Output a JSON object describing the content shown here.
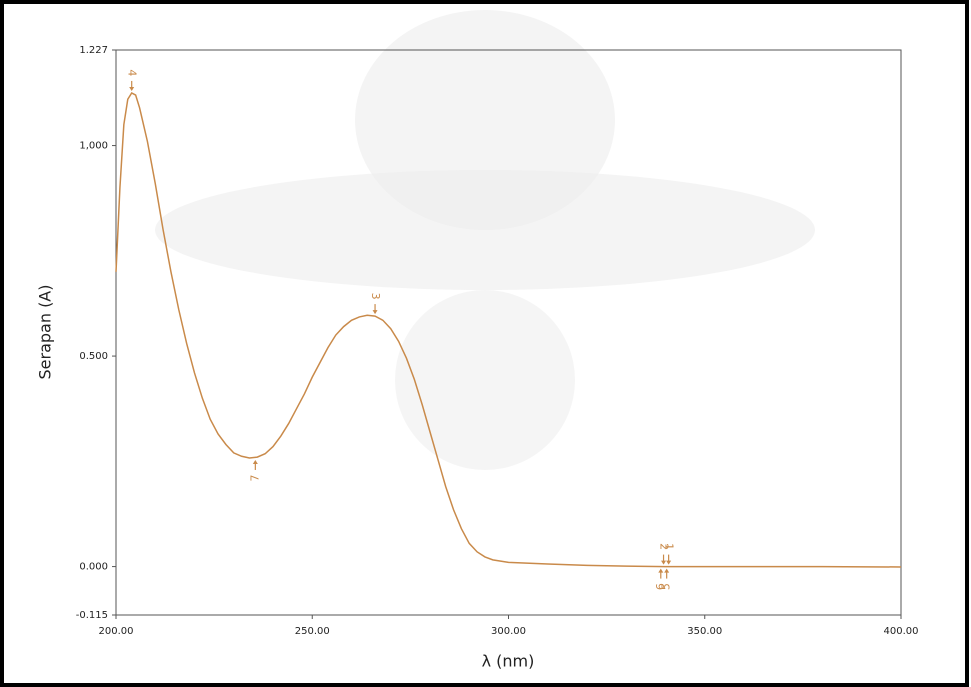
{
  "chart_data": {
    "type": "line",
    "ylabel": "Serapan (A)",
    "xlabel": "λ (nm)",
    "xlim": [
      200,
      400
    ],
    "xticks": [
      {
        "value": 200,
        "label": "200.00"
      },
      {
        "value": 250,
        "label": "250.00"
      },
      {
        "value": 300,
        "label": "300.00"
      },
      {
        "value": 350,
        "label": "350.00"
      },
      {
        "value": 400,
        "label": "400.00"
      }
    ],
    "ylim": [
      -0.115,
      1.227
    ],
    "yticks": [
      -0.115,
      {
        "value": 0,
        "label": "0.000"
      },
      {
        "value": 0.5,
        "label": "0.500"
      },
      {
        "value": 1,
        "label": "1,000"
      },
      1.227
    ],
    "x": [
      200,
      201,
      202,
      203,
      204,
      205,
      206,
      208,
      210,
      212,
      214,
      216,
      218,
      220,
      222,
      224,
      226,
      228,
      230,
      232,
      234,
      236,
      238,
      240,
      242,
      244,
      246,
      248,
      250,
      252,
      254,
      256,
      258,
      260,
      262,
      264,
      266,
      268,
      270,
      272,
      274,
      276,
      278,
      280,
      282,
      284,
      286,
      288,
      290,
      292,
      294,
      296,
      300,
      310,
      320,
      330,
      340,
      350,
      360,
      380,
      400
    ],
    "series": [
      {
        "color": "#c98a4a",
        "values": [
          0.7,
          0.9,
          1.05,
          1.11,
          1.125,
          1.12,
          1.09,
          1.01,
          0.91,
          0.8,
          0.7,
          0.61,
          0.53,
          0.46,
          0.4,
          0.35,
          0.315,
          0.29,
          0.27,
          0.262,
          0.258,
          0.26,
          0.268,
          0.285,
          0.31,
          0.34,
          0.375,
          0.41,
          0.45,
          0.485,
          0.52,
          0.55,
          0.57,
          0.585,
          0.593,
          0.597,
          0.595,
          0.585,
          0.565,
          0.535,
          0.495,
          0.445,
          0.385,
          0.32,
          0.255,
          0.19,
          0.135,
          0.09,
          0.055,
          0.035,
          0.023,
          0.016,
          0.01,
          0.006,
          0.003,
          0.001,
          0,
          0,
          0,
          0,
          -0.001
        ]
      }
    ],
    "peaks": [
      {
        "label": "4",
        "x": 204,
        "y": 1.125
      },
      {
        "label": "3",
        "x": 266,
        "y": 0.595
      },
      {
        "label": "2",
        "x": 339.5,
        "y": 0
      },
      {
        "label": "1",
        "x": 340.8,
        "y": 0
      }
    ],
    "valleys": [
      {
        "label": "7",
        "x": 235.5,
        "y": 0.258
      },
      {
        "label": "6",
        "x": 338.8,
        "y": 0
      },
      {
        "label": "5",
        "x": 340.3,
        "y": 0
      }
    ]
  }
}
